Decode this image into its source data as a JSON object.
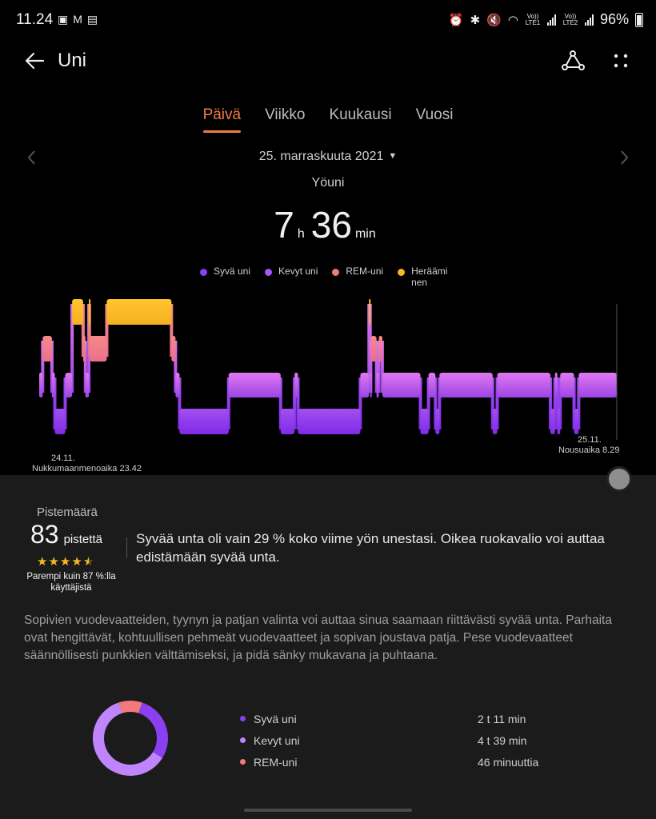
{
  "status_bar": {
    "time": "11.24",
    "lte1": "Vo)) LTE1",
    "lte2": "Vo)) LTE2",
    "battery": "96%"
  },
  "header": {
    "title": "Uni"
  },
  "tabs": [
    {
      "label": "Päivä",
      "active": true
    },
    {
      "label": "Viikko",
      "active": false
    },
    {
      "label": "Kuukausi",
      "active": false
    },
    {
      "label": "Vuosi",
      "active": false
    }
  ],
  "date": "25. marraskuuta 2021",
  "subtitle": "Yöuni",
  "duration": {
    "hours": "7",
    "hours_unit": "h",
    "minutes": "36",
    "minutes_unit": "min"
  },
  "legend": [
    {
      "label": "Syvä uni",
      "color": "#8a3ff0"
    },
    {
      "label": "Kevyt uni",
      "color": "#a855f7"
    },
    {
      "label": "REM-uni",
      "color": "#f27a7a"
    },
    {
      "label": "Heräämi nen",
      "color": "#f6b825"
    }
  ],
  "chart_data": {
    "type": "area",
    "levels": [
      "Heräämi nen",
      "REM-uni",
      "Kevyt uni",
      "Syvä uni"
    ],
    "start": {
      "date": "24.11.",
      "label": "Nukkumaanmenoaika 23.42"
    },
    "end": {
      "date": "25.11.",
      "label": "Nousuaika 8.29"
    },
    "segments": [
      {
        "stage": "Kevyt uni",
        "from": 0.0,
        "to": 0.6
      },
      {
        "stage": "REM-uni",
        "from": 0.6,
        "to": 2.2
      },
      {
        "stage": "Kevyt uni",
        "from": 2.2,
        "to": 2.7
      },
      {
        "stage": "Syvä uni",
        "from": 2.7,
        "to": 4.5
      },
      {
        "stage": "Kevyt uni",
        "from": 4.5,
        "to": 5.7
      },
      {
        "stage": "Heräämi nen",
        "from": 5.7,
        "to": 7.6
      },
      {
        "stage": "REM-uni",
        "from": 7.6,
        "to": 8.0
      },
      {
        "stage": "Kevyt uni",
        "from": 8.0,
        "to": 8.6
      },
      {
        "stage": "Heräämi nen",
        "from": 8.6,
        "to": 8.7
      },
      {
        "stage": "REM-uni",
        "from": 8.7,
        "to": 11.7
      },
      {
        "stage": "Heräämi nen",
        "from": 11.7,
        "to": 22.9
      },
      {
        "stage": "REM-uni",
        "from": 22.9,
        "to": 23.6
      },
      {
        "stage": "Kevyt uni",
        "from": 23.6,
        "to": 24.3
      },
      {
        "stage": "Syvä uni",
        "from": 24.3,
        "to": 32.8
      },
      {
        "stage": "Kevyt uni",
        "from": 32.8,
        "to": 41.8
      },
      {
        "stage": "Syvä uni",
        "from": 41.8,
        "to": 44.2
      },
      {
        "stage": "Kevyt uni",
        "from": 44.2,
        "to": 44.8
      },
      {
        "stage": "Syvä uni",
        "from": 44.8,
        "to": 55.6
      },
      {
        "stage": "Kevyt uni",
        "from": 55.6,
        "to": 57.1
      },
      {
        "stage": "Heräämi nen",
        "from": 57.1,
        "to": 57.3
      },
      {
        "stage": "Kevyt uni",
        "from": 57.3,
        "to": 57.4
      },
      {
        "stage": "REM-uni",
        "from": 57.4,
        "to": 58.4
      },
      {
        "stage": "Kevyt uni",
        "from": 58.4,
        "to": 58.8
      },
      {
        "stage": "REM-uni",
        "from": 58.8,
        "to": 59.4
      },
      {
        "stage": "Kevyt uni",
        "from": 59.4,
        "to": 66.0
      },
      {
        "stage": "Syvä uni",
        "from": 66.0,
        "to": 67.4
      },
      {
        "stage": "Kevyt uni",
        "from": 67.4,
        "to": 68.6
      },
      {
        "stage": "Syvä uni",
        "from": 68.6,
        "to": 69.3
      },
      {
        "stage": "Kevyt uni",
        "from": 69.3,
        "to": 78.5
      },
      {
        "stage": "Syvä uni",
        "from": 78.5,
        "to": 79.3
      },
      {
        "stage": "Kevyt uni",
        "from": 79.3,
        "to": 88.5
      },
      {
        "stage": "Syvä uni",
        "from": 88.5,
        "to": 89.3
      },
      {
        "stage": "Kevyt uni",
        "from": 89.3,
        "to": 89.7
      },
      {
        "stage": "Syvä uni",
        "from": 89.7,
        "to": 90.2
      },
      {
        "stage": "Kevyt uni",
        "from": 90.2,
        "to": 92.6
      },
      {
        "stage": "Syvä uni",
        "from": 92.6,
        "to": 93.4
      },
      {
        "stage": "Kevyt uni",
        "from": 93.4,
        "to": 100.0
      }
    ]
  },
  "score": {
    "label": "Pistemäärä",
    "value": "83",
    "unit": "pistettä",
    "stars": 4.5,
    "comparison": "Parempi kuin 87 %:lla käyttäjistä"
  },
  "advice_main": "Syvää unta oli vain 29 % koko viime yön unestasi. Oikea ruokavalio voi auttaa edistämään syvää unta.",
  "advice_detail": "Sopivien vuodevaatteiden, tyynyn ja patjan valinta voi auttaa sinua saamaan riittävästi syvää unta. Parhaita ovat hengittävät, kohtuullisen pehmeät vuodevaatteet ja sopivan joustava patja. Pese vuodevaatteet säännöllisesti punkkien välttämiseksi, ja pidä sänky mukavana ja puhtaana.",
  "breakdown": [
    {
      "label": "Syvä uni",
      "value": "2 t 11 min",
      "minutes": 131,
      "color": "#8a3ff0"
    },
    {
      "label": "Kevyt uni",
      "value": "4 t 39 min",
      "minutes": 279,
      "color": "#c084fc"
    },
    {
      "label": "REM-uni",
      "value": "46 minuuttia",
      "minutes": 46,
      "color": "#f27a7a"
    }
  ]
}
